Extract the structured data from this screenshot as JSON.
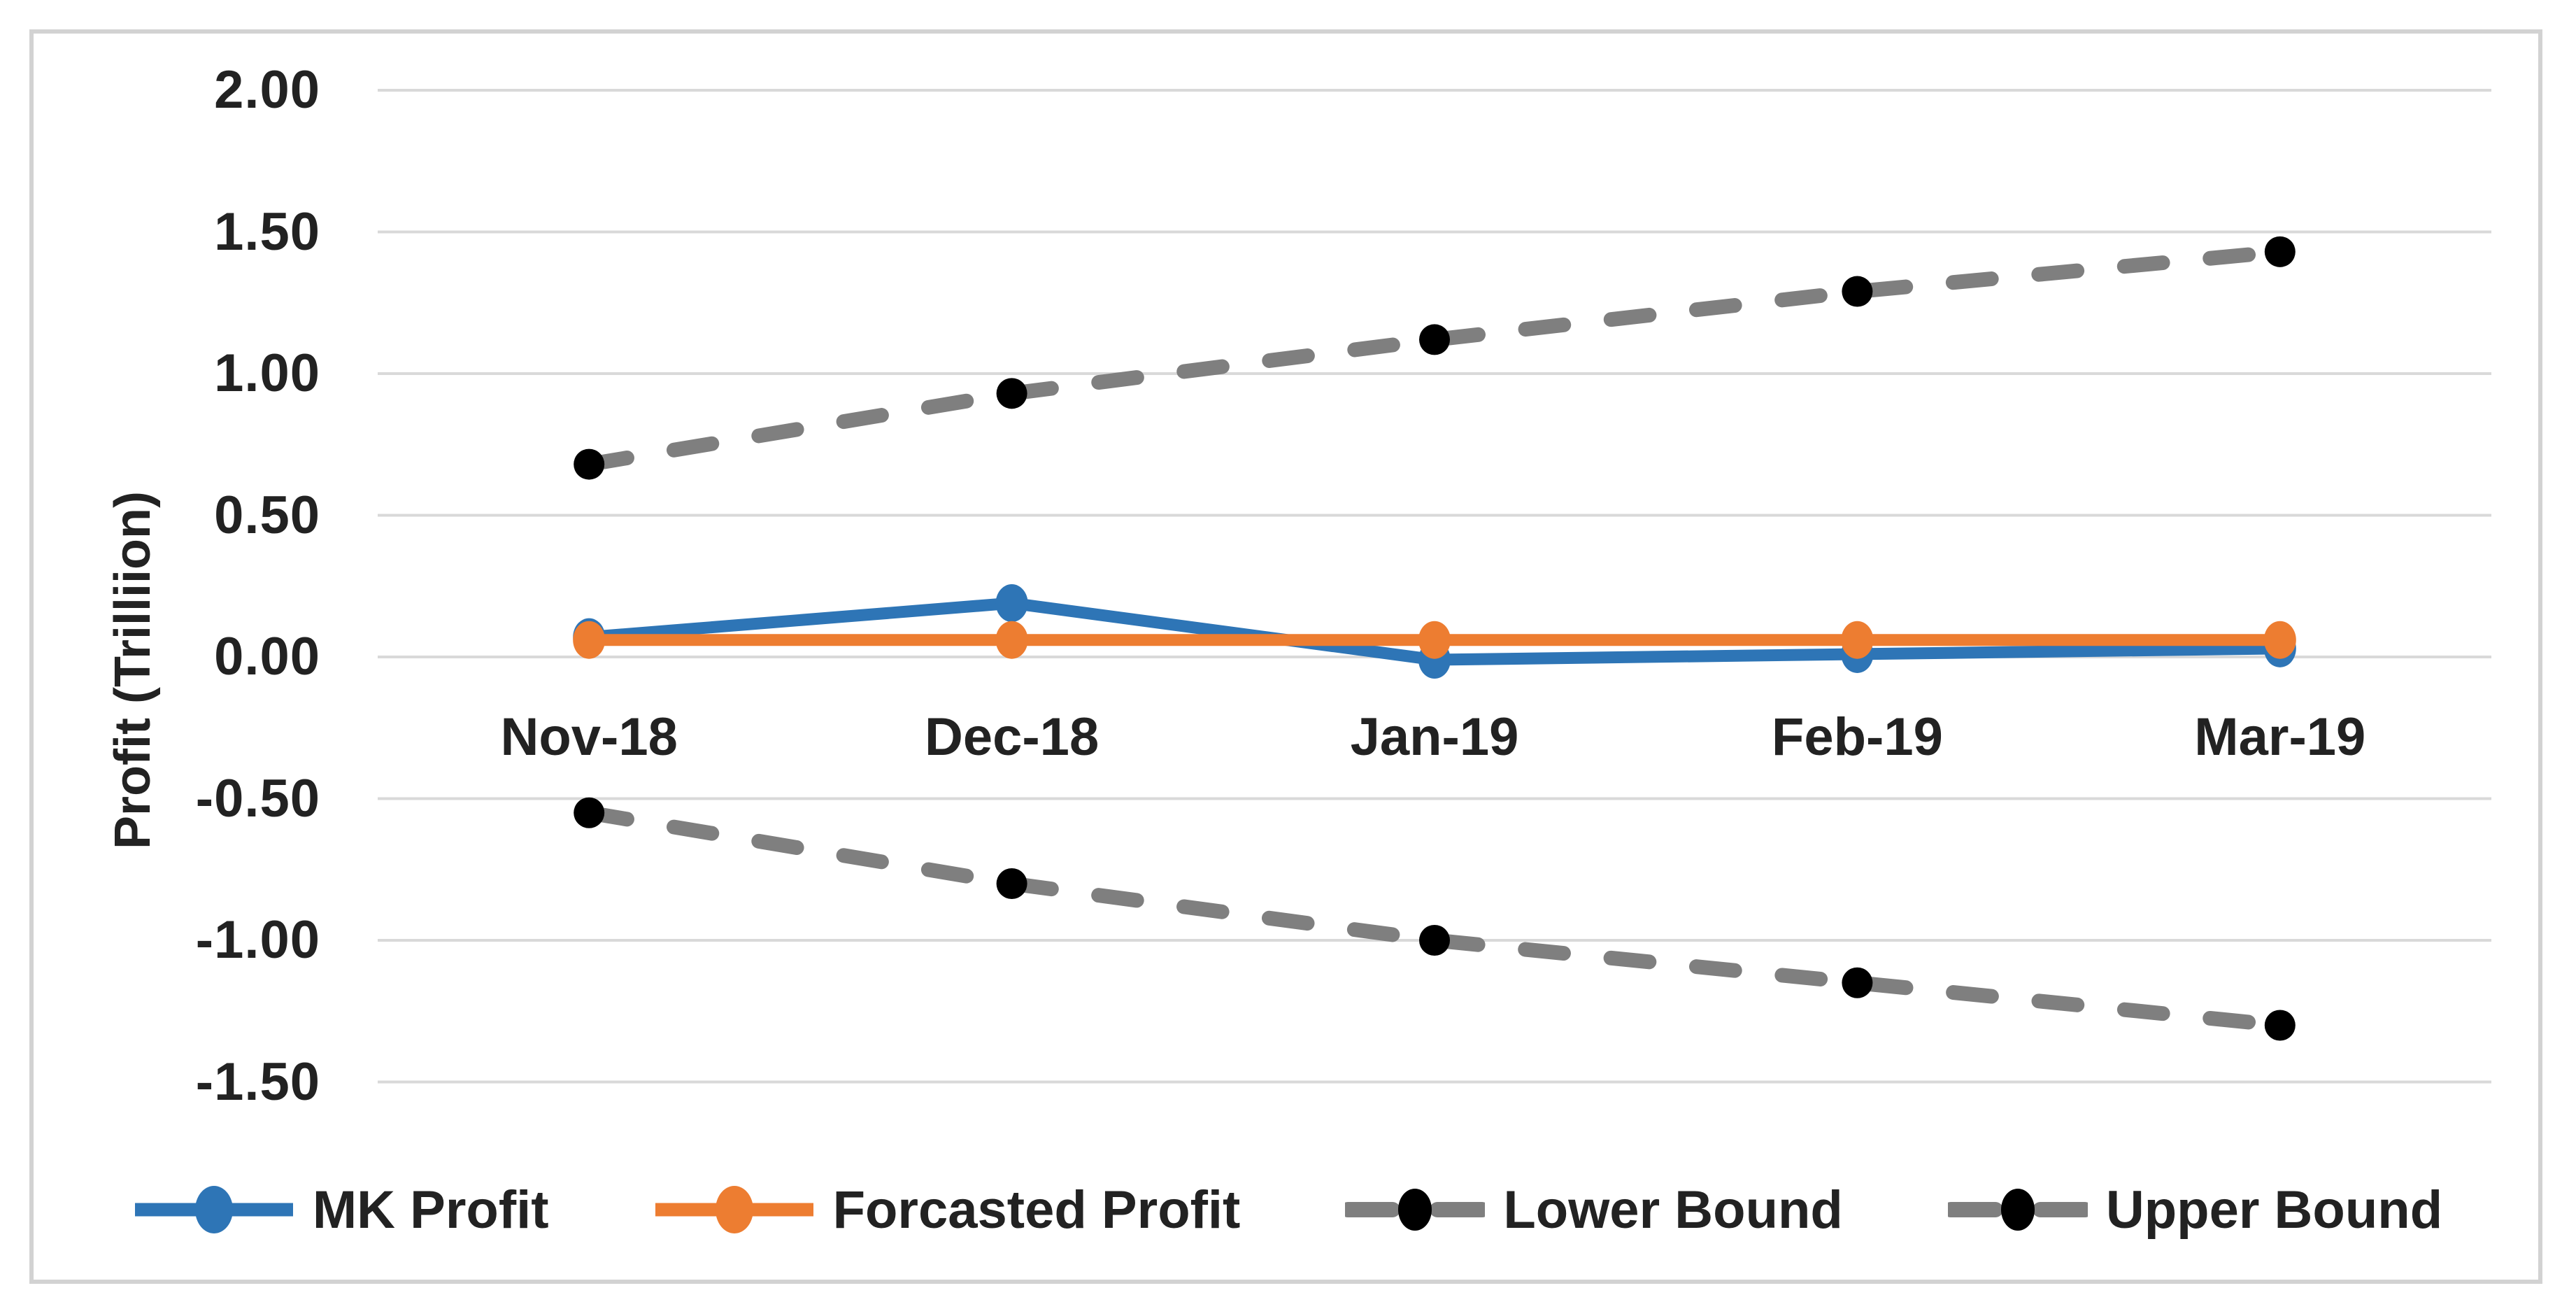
{
  "chart": {
    "background": "#ffffff",
    "border_color": "#d2d2d2",
    "gridline_color": "#d9d9d9",
    "text_color": "#222222"
  },
  "chart_data": {
    "type": "line",
    "title": "",
    "xlabel": "",
    "ylabel": "Profit (Trilliion)",
    "categories": [
      "Nov-18",
      "Dec-18",
      "Jan-19",
      "Feb-19",
      "Mar-19"
    ],
    "series": [
      {
        "name": "MK Profit",
        "color": "#2E75B6",
        "dash": false,
        "marker_color": "#2E75B6",
        "values": [
          0.07,
          0.19,
          -0.01,
          0.01,
          0.03
        ]
      },
      {
        "name": "Forcasted Profit",
        "color": "#ED7D31",
        "dash": false,
        "marker_color": "#ED7D31",
        "values": [
          0.06,
          0.06,
          0.06,
          0.06,
          0.06
        ]
      },
      {
        "name": "Lower Bound",
        "color": "#7F7F7F",
        "dash": true,
        "marker_color": "#000000",
        "values": [
          -0.55,
          -0.8,
          -1.0,
          -1.15,
          -1.3
        ]
      },
      {
        "name": "Upper Bound",
        "color": "#7F7F7F",
        "dash": true,
        "marker_color": "#000000",
        "values": [
          0.68,
          0.93,
          1.12,
          1.29,
          1.43
        ]
      }
    ],
    "ylim": [
      -1.5,
      2.0
    ],
    "ytick_step": 0.5,
    "ytick_labels": [
      "2.00",
      "1.50",
      "1.00",
      "0.50",
      "0.00",
      "-0.50",
      "-1.00",
      "-1.50"
    ],
    "grid": true,
    "legend_position": "bottom"
  }
}
